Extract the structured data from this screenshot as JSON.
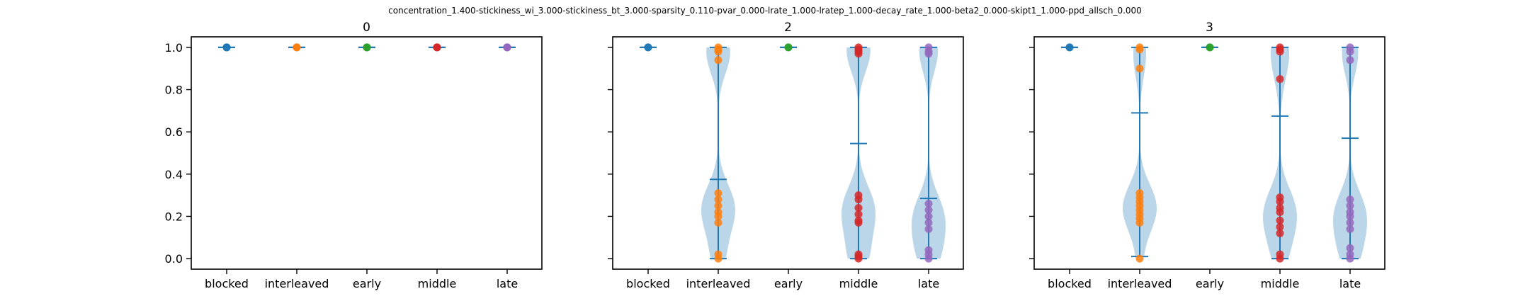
{
  "figure": {
    "suptitle": "concentration_1.400-stickiness_wi_3.000-stickiness_bt_3.000-sparsity_0.110-pvar_0.000-lrate_1.000-lratep_1.000-decay_rate_1.000-beta2_0.000-skipt1_1.000-ppd_allsch_0.000"
  },
  "chart_data": [
    {
      "type": "violin",
      "title": "0",
      "categories": [
        "blocked",
        "interleaved",
        "early",
        "middle",
        "late"
      ],
      "y_ticks": [
        "0.0",
        "0.2",
        "0.4",
        "0.6",
        "0.8",
        "1.0"
      ],
      "ylim": [
        -0.05,
        1.05
      ],
      "grid": false,
      "colors": [
        "#1f77b4",
        "#ff7f0e",
        "#2ca02c",
        "#d62728",
        "#9467bd"
      ],
      "series": [
        {
          "points": [
            1.0,
            1.0,
            1.0
          ],
          "min": 1.0,
          "max": 1.0,
          "mean": 1.0
        },
        {
          "points": [
            1.0,
            1.0,
            1.0
          ],
          "min": 1.0,
          "max": 1.0,
          "mean": 1.0
        },
        {
          "points": [
            1.0,
            1.0,
            1.0
          ],
          "min": 1.0,
          "max": 1.0,
          "mean": 1.0
        },
        {
          "points": [
            1.0,
            1.0,
            1.0
          ],
          "min": 1.0,
          "max": 1.0,
          "mean": 1.0
        },
        {
          "points": [
            1.0,
            1.0,
            1.0
          ],
          "min": 1.0,
          "max": 1.0,
          "mean": 1.0
        }
      ]
    },
    {
      "type": "violin",
      "title": "2",
      "categories": [
        "blocked",
        "interleaved",
        "early",
        "middle",
        "late"
      ],
      "y_ticks": [
        "0.0",
        "0.2",
        "0.4",
        "0.6",
        "0.8",
        "1.0"
      ],
      "ylim": [
        -0.05,
        1.05
      ],
      "grid": false,
      "colors": [
        "#1f77b4",
        "#ff7f0e",
        "#2ca02c",
        "#d62728",
        "#9467bd"
      ],
      "series": [
        {
          "points": [
            1.0,
            1.0
          ],
          "min": 1.0,
          "max": 1.0,
          "mean": 1.0
        },
        {
          "points": [
            1.0,
            0.99,
            0.98,
            0.94,
            0.31,
            0.28,
            0.25,
            0.22,
            0.2,
            0.17,
            0.02,
            0.0
          ],
          "min": 0.0,
          "max": 1.0,
          "mean": 0.375
        },
        {
          "points": [
            1.0,
            1.0
          ],
          "min": 1.0,
          "max": 1.0,
          "mean": 1.0
        },
        {
          "points": [
            1.0,
            0.99,
            0.98,
            0.97,
            0.3,
            0.28,
            0.24,
            0.21,
            0.18,
            0.17,
            0.02,
            0.01,
            0.0
          ],
          "min": 0.0,
          "max": 1.0,
          "mean": 0.545
        },
        {
          "points": [
            1.0,
            0.98,
            0.97,
            0.26,
            0.23,
            0.2,
            0.17,
            0.14,
            0.04,
            0.02,
            0.0
          ],
          "min": 0.0,
          "max": 1.0,
          "mean": 0.285
        }
      ]
    },
    {
      "type": "violin",
      "title": "3",
      "categories": [
        "blocked",
        "interleaved",
        "early",
        "middle",
        "late"
      ],
      "y_ticks": [
        "0.0",
        "0.2",
        "0.4",
        "0.6",
        "0.8",
        "1.0"
      ],
      "ylim": [
        -0.05,
        1.05
      ],
      "grid": false,
      "colors": [
        "#1f77b4",
        "#ff7f0e",
        "#2ca02c",
        "#d62728",
        "#9467bd"
      ],
      "series": [
        {
          "points": [
            1.0,
            1.0
          ],
          "min": 1.0,
          "max": 1.0,
          "mean": 1.0
        },
        {
          "points": [
            1.0,
            0.99,
            0.9,
            0.31,
            0.29,
            0.27,
            0.25,
            0.23,
            0.21,
            0.19,
            0.17,
            0.0
          ],
          "min": 0.01,
          "max": 1.0,
          "mean": 0.69
        },
        {
          "points": [
            1.0,
            1.0
          ],
          "min": 1.0,
          "max": 1.0,
          "mean": 1.0
        },
        {
          "points": [
            1.0,
            0.99,
            0.98,
            0.85,
            0.29,
            0.27,
            0.24,
            0.22,
            0.18,
            0.15,
            0.12,
            0.02,
            0.0
          ],
          "min": 0.0,
          "max": 1.0,
          "mean": 0.675
        },
        {
          "points": [
            1.0,
            0.98,
            0.94,
            0.28,
            0.25,
            0.22,
            0.2,
            0.17,
            0.14,
            0.05,
            0.02,
            0.0
          ],
          "min": 0.0,
          "max": 1.0,
          "mean": 0.57
        }
      ]
    }
  ]
}
